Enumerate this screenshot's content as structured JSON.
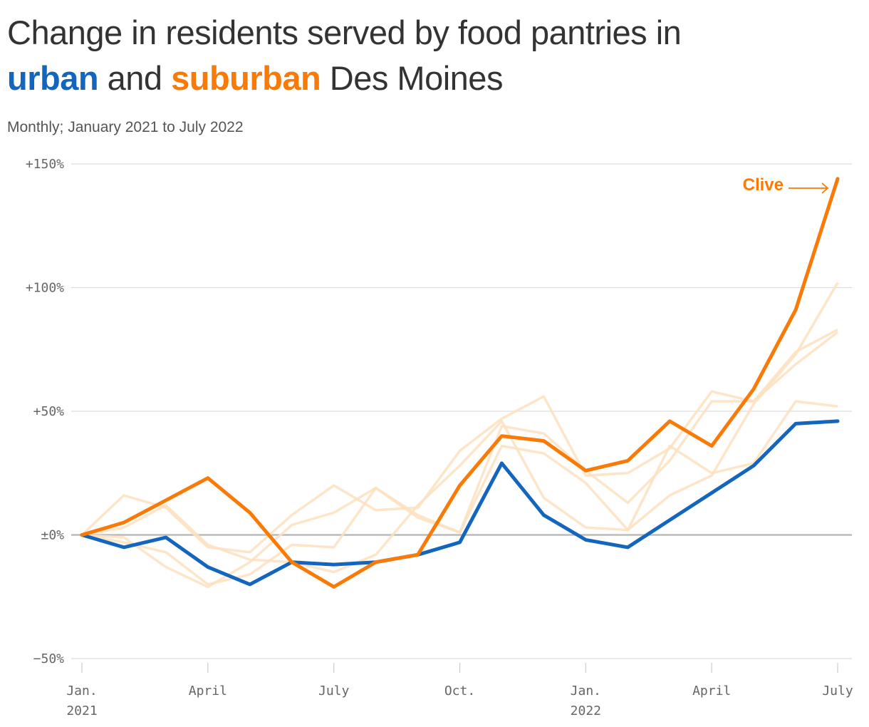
{
  "header": {
    "title_part1": "Change in residents served by food pantries in",
    "title_urban": "urban",
    "title_and": "and",
    "title_suburban": "suburban",
    "title_end": "Des Moines",
    "subtitle": "Monthly; January 2021 to July 2022"
  },
  "colors": {
    "urban": "#1365bd",
    "suburban": "#f97a07",
    "other_suburbs": "#fde0c0",
    "grid": "#dddddd",
    "zero_line": "#bbbbbb"
  },
  "chart_data": {
    "type": "line",
    "title": "Change in residents served by food pantries in urban and suburban Des Moines",
    "subtitle": "Monthly; January 2021 to July 2022",
    "x": [
      "2021-01",
      "2021-02",
      "2021-03",
      "2021-04",
      "2021-05",
      "2021-06",
      "2021-07",
      "2021-08",
      "2021-09",
      "2021-10",
      "2021-11",
      "2021-12",
      "2022-01",
      "2022-02",
      "2022-03",
      "2022-04",
      "2022-05",
      "2022-06",
      "2022-07"
    ],
    "x_ticks": [
      {
        "x": "2021-01",
        "label": "Jan.",
        "label2": "2021"
      },
      {
        "x": "2021-04",
        "label": "April",
        "label2": ""
      },
      {
        "x": "2021-07",
        "label": "July",
        "label2": ""
      },
      {
        "x": "2021-10",
        "label": "Oct.",
        "label2": ""
      },
      {
        "x": "2022-01",
        "label": "Jan.",
        "label2": "2022"
      },
      {
        "x": "2022-04",
        "label": "April",
        "label2": ""
      },
      {
        "x": "2022-07",
        "label": "July",
        "label2": ""
      }
    ],
    "ylim": [
      -50,
      150
    ],
    "y_ticks": [
      {
        "value": 150,
        "label": "+150%"
      },
      {
        "value": 100,
        "label": "+100%"
      },
      {
        "value": 50,
        "label": "+50%"
      },
      {
        "value": 0,
        "label": "±0%"
      },
      {
        "value": -50,
        "label": "−50%"
      }
    ],
    "grid": true,
    "background_series": [
      {
        "values": [
          0,
          16,
          11,
          -5,
          -7,
          8,
          20,
          10,
          11,
          34,
          47,
          56,
          24,
          25,
          35,
          58,
          54,
          74,
          83
        ]
      },
      {
        "values": [
          0,
          -3,
          -7,
          -20,
          -16,
          -4,
          -5,
          19,
          7,
          1,
          44,
          41,
          26,
          13,
          30,
          54,
          54,
          69,
          82
        ]
      },
      {
        "values": [
          0,
          -1,
          -13,
          -21,
          -11,
          4,
          9,
          19,
          8,
          1,
          36,
          33,
          21,
          2,
          36,
          25,
          29,
          54,
          52
        ]
      },
      {
        "values": [
          0,
          3,
          12,
          -4,
          -10,
          -11,
          -15,
          -8,
          12,
          28,
          46,
          15,
          3,
          2,
          16,
          24,
          53,
          73,
          102
        ]
      }
    ],
    "series": [
      {
        "group": "urban",
        "values": [
          0,
          -5,
          -1,
          -13,
          -20,
          -11,
          -12,
          -11,
          -8,
          -3,
          29,
          8,
          -2,
          -5,
          6,
          17,
          28,
          45,
          46
        ]
      },
      {
        "name": "Clive",
        "group": "suburban",
        "values": [
          0,
          5,
          14,
          23,
          9,
          -11,
          -21,
          -11,
          -8,
          20,
          40,
          38,
          26,
          30,
          46,
          36,
          59,
          91,
          144
        ]
      }
    ],
    "annotations": [
      {
        "text": "Clive",
        "series": "Clive",
        "arrow": "right"
      }
    ]
  }
}
